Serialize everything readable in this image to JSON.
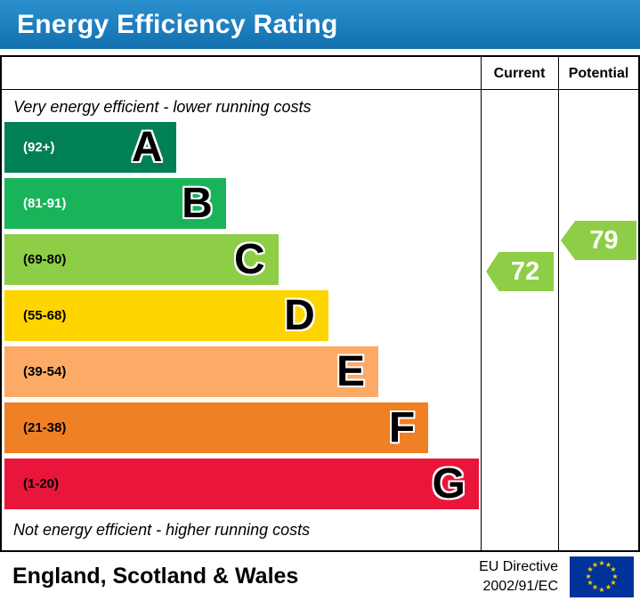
{
  "title": "Energy Efficiency Rating",
  "columns": {
    "current": "Current",
    "potential": "Potential"
  },
  "captions": {
    "top": "Very energy efficient - lower running costs",
    "bottom": "Not energy efficient - higher running costs"
  },
  "colors": {
    "header_blue_top": "#2c90ce",
    "header_blue_bottom": "#1170b0",
    "border": "#000000"
  },
  "chart_data": {
    "type": "bar",
    "title": "Energy Efficiency Rating",
    "legend_position": "none",
    "grid": false,
    "bands": [
      {
        "letter": "A",
        "range": "(92+)",
        "min": 92,
        "max": 100,
        "color": "#008054",
        "label_color": "#ffffff",
        "width_pct": 36
      },
      {
        "letter": "B",
        "range": "(81-91)",
        "min": 81,
        "max": 91,
        "color": "#19b459",
        "label_color": "#ffffff",
        "width_pct": 46.5
      },
      {
        "letter": "C",
        "range": "(69-80)",
        "min": 69,
        "max": 80,
        "color": "#8dce46",
        "label_color": "#000000",
        "width_pct": 57.5
      },
      {
        "letter": "D",
        "range": "(55-68)",
        "min": 55,
        "max": 68,
        "color": "#ffd500",
        "label_color": "#000000",
        "width_pct": 68
      },
      {
        "letter": "E",
        "range": "(39-54)",
        "min": 39,
        "max": 54,
        "color": "#fcaa65",
        "label_color": "#000000",
        "width_pct": 78.5
      },
      {
        "letter": "F",
        "range": "(21-38)",
        "min": 21,
        "max": 38,
        "color": "#ef8023",
        "label_color": "#000000",
        "width_pct": 89
      },
      {
        "letter": "G",
        "range": "(1-20)",
        "min": 1,
        "max": 20,
        "color": "#e9153b",
        "label_color": "#000000",
        "width_pct": 99.6
      }
    ],
    "current": {
      "value": 72,
      "band": "C",
      "color": "#8dce46"
    },
    "potential": {
      "value": 79,
      "band": "C",
      "color": "#8dce46"
    }
  },
  "footer": {
    "region": "England, Scotland & Wales",
    "directive_line1": "EU Directive",
    "directive_line2": "2002/91/EC",
    "flag": {
      "background": "#003399",
      "star_color": "#ffcc00",
      "star_glyph": "★"
    }
  }
}
